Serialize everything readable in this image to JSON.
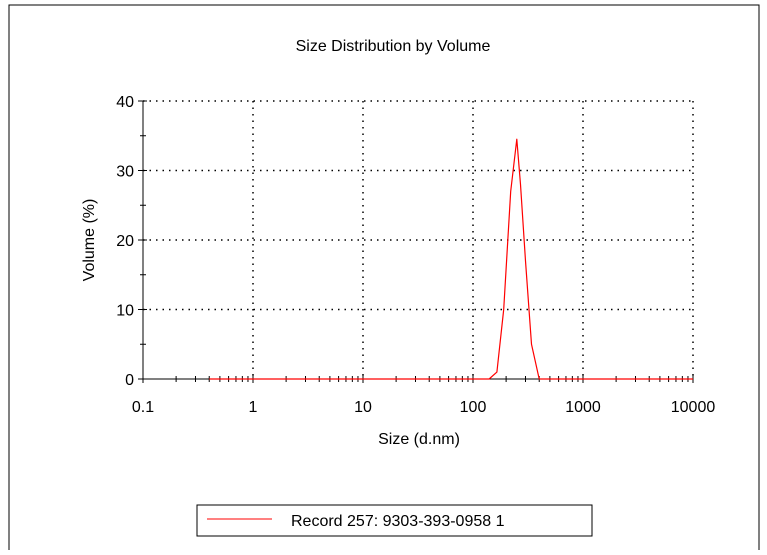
{
  "chart_data": {
    "type": "line",
    "title": "Size Distribution by Volume",
    "xlabel": "Size (d.nm)",
    "ylabel": "Volume (%)",
    "x_scale": "log",
    "xlim": [
      0.1,
      10000
    ],
    "ylim": [
      0,
      40
    ],
    "x_ticks": [
      0.1,
      1,
      10,
      100,
      1000,
      10000
    ],
    "x_tick_labels": [
      "0.1",
      "1",
      "10",
      "100",
      "1000",
      "10000"
    ],
    "y_ticks": [
      0,
      10,
      20,
      30,
      40
    ],
    "y_tick_labels": [
      "0",
      "10",
      "20",
      "30",
      "40"
    ],
    "grid": true,
    "legend_position": "bottom-center",
    "series": [
      {
        "name": "Record 257: 9303-393-0958 1",
        "color": "#ff0000",
        "x": [
          0.4,
          1,
          10,
          100,
          140,
          165,
          190,
          220,
          250,
          270,
          300,
          340,
          400,
          500,
          1000,
          10000
        ],
        "y": [
          0,
          0,
          0,
          0,
          0,
          1,
          10,
          27,
          34.5,
          28,
          17,
          5,
          0,
          0,
          0,
          0
        ]
      }
    ]
  }
}
